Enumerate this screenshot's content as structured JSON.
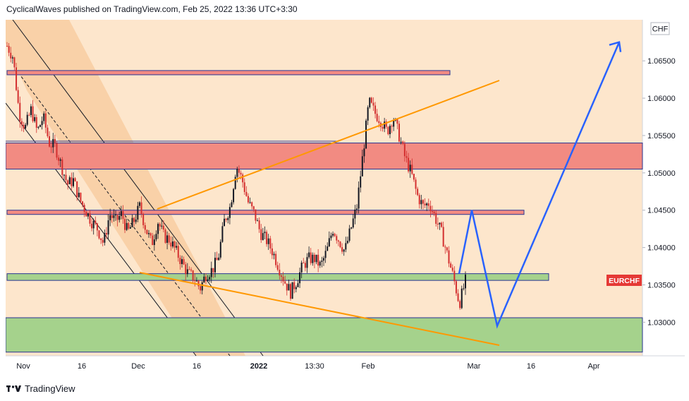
{
  "header": {
    "text": "CyclicalWaves published on TradingView.com, Feb 25, 2022 13:36 UTC+3:30"
  },
  "footer": {
    "brand": "TradingView",
    "logo_icon": "tradingview-logo-icon"
  },
  "colors": {
    "background": "#fde6cc",
    "candle_up": "#131722",
    "candle_down": "#d32f2f",
    "resistance_zone": "#f28b82",
    "support_zone": "#a5d28c",
    "zone_border": "#283593",
    "wedge_line": "#ff9800",
    "channel_line": "#131722",
    "channel_fill": "#f6c38f",
    "projection": "#2962ff",
    "price_badge": "#e53935"
  },
  "chart_data": {
    "type": "candlestick",
    "symbol": "EURCHF",
    "currency": "CHF",
    "y_ticks": [
      "1.06500",
      "1.06000",
      "1.05500",
      "1.05000",
      "1.04500",
      "1.04000",
      "1.03500",
      "1.03000"
    ],
    "ylim": [
      1.0255,
      1.0705
    ],
    "x_ticks": [
      "Nov",
      "16",
      "Dec",
      "16",
      "2022",
      "13:30",
      "Feb",
      "Mar",
      "16",
      "Apr"
    ],
    "last_price_label": "EURCHF",
    "price_path": [
      1.067,
      1.0655,
      1.058,
      1.056,
      1.0585,
      1.0555,
      1.0575,
      1.054,
      1.0535,
      1.051,
      1.0485,
      1.049,
      1.0465,
      1.045,
      1.0435,
      1.0425,
      1.0405,
      1.0445,
      1.0435,
      1.0445,
      1.042,
      1.0435,
      1.0455,
      1.0425,
      1.0405,
      1.0435,
      1.0415,
      1.041,
      1.0395,
      1.038,
      1.0365,
      1.036,
      1.0345,
      1.0365,
      1.037,
      1.0385,
      1.0435,
      1.0455,
      1.051,
      1.049,
      1.046,
      1.0445,
      1.042,
      1.041,
      1.0395,
      1.0375,
      1.0355,
      1.034,
      1.0355,
      1.0375,
      1.0385,
      1.0385,
      1.0375,
      1.0395,
      1.0425,
      1.041,
      1.0395,
      1.0425,
      1.0455,
      1.0525,
      1.0595,
      1.058,
      1.057,
      1.0555,
      1.0575,
      1.055,
      1.052,
      1.05,
      1.047,
      1.0455,
      1.046,
      1.044,
      1.042,
      1.039,
      1.036,
      1.0325,
      1.0355
    ],
    "zones": [
      {
        "kind": "resistance",
        "range": [
          1.0632,
          1.0637
        ]
      },
      {
        "kind": "resistance",
        "range": [
          1.0505,
          1.054
        ]
      },
      {
        "kind": "resistance",
        "range": [
          1.0445,
          1.045
        ]
      },
      {
        "kind": "support",
        "range": [
          1.0356,
          1.0365
        ]
      },
      {
        "kind": "support",
        "range": [
          1.026,
          1.0306
        ]
      }
    ],
    "projection_path": [
      1.0365,
      1.045,
      1.0295,
      1.0675
    ]
  }
}
